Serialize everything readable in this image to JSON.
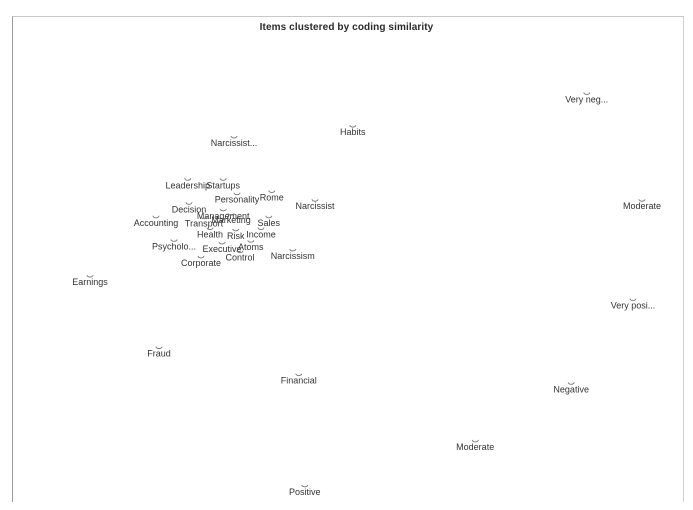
{
  "chart_data": {
    "type": "scatter",
    "title": "Items clustered by coding similarity",
    "xlabel": "",
    "ylabel": "",
    "grid": false,
    "legend": "none",
    "point_color": "#333333",
    "xlim": [
      0,
      100
    ],
    "ylim": [
      0,
      100
    ],
    "points": [
      {
        "label": "Very neg...",
        "x": 87.8,
        "y": 90.5
      },
      {
        "label": "Habits",
        "x": 48.8,
        "y": 83.0
      },
      {
        "label": "Narcissist...",
        "x": 29.0,
        "y": 80.5
      },
      {
        "label": "Leadership",
        "x": 21.3,
        "y": 70.8
      },
      {
        "label": "Startups",
        "x": 27.2,
        "y": 70.8
      },
      {
        "label": "Personality",
        "x": 29.5,
        "y": 67.5
      },
      {
        "label": "Rome",
        "x": 35.3,
        "y": 68.0
      },
      {
        "label": "Narcissist",
        "x": 42.5,
        "y": 66.0
      },
      {
        "label": "Moderate",
        "x": 97.0,
        "y": 66.0
      },
      {
        "label": "Decision",
        "x": 21.5,
        "y": 65.3
      },
      {
        "label": "Management",
        "x": 27.2,
        "y": 63.8
      },
      {
        "label": "Accounting",
        "x": 16.0,
        "y": 62.2
      },
      {
        "label": "Transport",
        "x": 24.0,
        "y": 62.0
      },
      {
        "label": "Marketing",
        "x": 28.5,
        "y": 62.8
      },
      {
        "label": "Sales",
        "x": 34.8,
        "y": 62.2
      },
      {
        "label": "Health",
        "x": 25.0,
        "y": 59.5
      },
      {
        "label": "Risk",
        "x": 29.3,
        "y": 59.2
      },
      {
        "label": "Income",
        "x": 33.5,
        "y": 59.5
      },
      {
        "label": "Psycholo...",
        "x": 19.0,
        "y": 56.8
      },
      {
        "label": "Executive",
        "x": 27.0,
        "y": 56.2
      },
      {
        "label": "Atoms",
        "x": 31.8,
        "y": 56.6
      },
      {
        "label": "Narcissism",
        "x": 38.8,
        "y": 54.6
      },
      {
        "label": "Corporate",
        "x": 23.5,
        "y": 53.0
      },
      {
        "label": "Control",
        "x": 30.0,
        "y": 54.2
      },
      {
        "label": "Earnings",
        "x": 5.0,
        "y": 48.6
      },
      {
        "label": "Very posi...",
        "x": 95.5,
        "y": 43.2
      },
      {
        "label": "Fraud",
        "x": 16.5,
        "y": 32.2
      },
      {
        "label": "Financial",
        "x": 39.8,
        "y": 26.0
      },
      {
        "label": "Negative",
        "x": 85.2,
        "y": 24.0
      },
      {
        "label": "Moderate",
        "x": 69.2,
        "y": 10.8
      },
      {
        "label": "Positive",
        "x": 40.8,
        "y": 0.5
      }
    ]
  }
}
